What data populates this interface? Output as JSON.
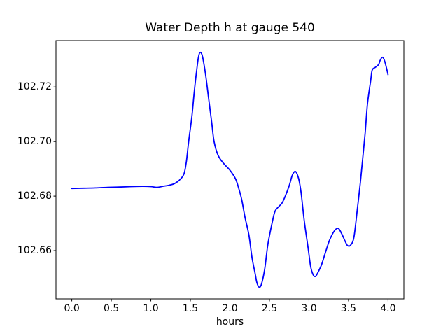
{
  "chart_data": {
    "type": "line",
    "title": "Water Depth h at gauge 540",
    "xlabel": "hours",
    "ylabel": "",
    "grid": false,
    "legend_position": "none",
    "xlim": [
      -0.2,
      4.2
    ],
    "ylim": [
      102.6423,
      102.737
    ],
    "x_ticks": [
      0.0,
      0.5,
      1.0,
      1.5,
      2.0,
      2.5,
      3.0,
      3.5,
      4.0
    ],
    "x_tick_labels": [
      "0.0",
      "0.5",
      "1.0",
      "1.5",
      "2.0",
      "2.5",
      "3.0",
      "3.5",
      "4.0"
    ],
    "y_ticks": [
      102.66,
      102.68,
      102.7,
      102.72
    ],
    "y_tick_labels": [
      "102.66",
      "102.68",
      "102.70",
      "102.72"
    ],
    "line_color": "#0000ff",
    "axes_color": "#000000",
    "background_color": "#ffffff",
    "series": [
      {
        "name": "water-depth-h-gauge-540",
        "x": [
          0.0,
          0.15,
          0.3,
          0.45,
          0.6,
          0.75,
          0.9,
          1.0,
          1.08,
          1.15,
          1.22,
          1.3,
          1.37,
          1.42,
          1.45,
          1.48,
          1.52,
          1.55,
          1.58,
          1.6,
          1.62,
          1.65,
          1.69,
          1.73,
          1.77,
          1.8,
          1.85,
          1.92,
          2.0,
          2.07,
          2.11,
          2.15,
          2.19,
          2.24,
          2.28,
          2.32,
          2.34,
          2.37,
          2.4,
          2.44,
          2.48,
          2.53,
          2.57,
          2.62,
          2.66,
          2.7,
          2.75,
          2.79,
          2.83,
          2.87,
          2.9,
          2.94,
          2.99,
          3.02,
          3.05,
          3.08,
          3.11,
          3.16,
          3.21,
          3.26,
          3.32,
          3.37,
          3.41,
          3.46,
          3.49,
          3.53,
          3.57,
          3.61,
          3.65,
          3.68,
          3.71,
          3.74,
          3.78,
          3.8,
          3.84,
          3.88,
          3.9,
          3.93,
          3.96,
          4.0
        ],
        "y": [
          102.6828,
          102.6829,
          102.683,
          102.6832,
          102.6833,
          102.6835,
          102.6836,
          102.6835,
          102.6832,
          102.6836,
          102.6839,
          102.6846,
          102.6861,
          102.6882,
          102.6928,
          102.7005,
          102.7095,
          102.7185,
          102.7262,
          102.7305,
          102.7326,
          102.7315,
          102.725,
          102.716,
          102.707,
          102.7,
          102.695,
          102.692,
          102.6895,
          102.6864,
          102.683,
          102.6787,
          102.6723,
          102.6658,
          102.6574,
          102.6515,
          102.6484,
          102.6466,
          102.6478,
          102.6532,
          102.6622,
          102.6697,
          102.6744,
          102.6762,
          102.6775,
          102.68,
          102.6838,
          102.6877,
          102.689,
          102.6863,
          102.6813,
          102.671,
          102.6608,
          102.6544,
          102.6513,
          102.6505,
          102.6518,
          102.6549,
          102.6595,
          102.6638,
          102.6672,
          102.6682,
          102.6664,
          102.6633,
          102.6618,
          102.6621,
          102.6651,
          102.6749,
          102.6851,
          102.694,
          102.7031,
          102.7138,
          102.7223,
          102.7262,
          102.7272,
          102.7282,
          102.7297,
          102.7309,
          102.7292,
          102.7245
        ]
      }
    ]
  }
}
